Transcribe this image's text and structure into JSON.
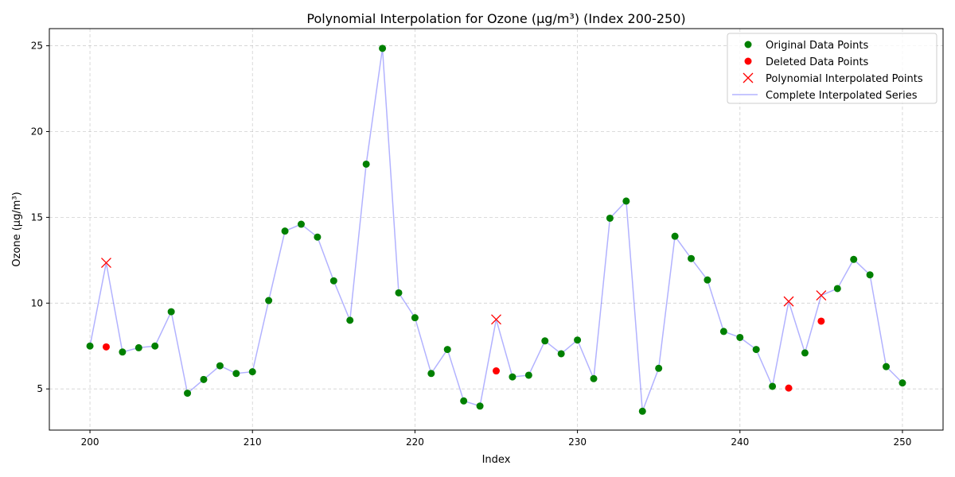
{
  "chart_data": {
    "type": "line",
    "title": "Polynomial Interpolation for Ozone (µg/m³) (Index 200-250)",
    "xlabel": "Index",
    "ylabel": "Ozone (µg/m³)",
    "xlim": [
      197.5,
      252.5
    ],
    "ylim": [
      2.6,
      26.0
    ],
    "xticks": [
      200,
      210,
      220,
      230,
      240,
      250
    ],
    "yticks": [
      5,
      10,
      15,
      20,
      25
    ],
    "grid": true,
    "legend_position": "top-right",
    "colors": {
      "original": "#008000",
      "deleted": "#ff0000",
      "interpolated_marker": "#ff0000",
      "series_line": "#0000ff"
    },
    "legend": [
      {
        "key": "original",
        "label": "Original Data Points"
      },
      {
        "key": "deleted",
        "label": "Deleted Data Points"
      },
      {
        "key": "interpolated",
        "label": "Polynomial Interpolated Points"
      },
      {
        "key": "complete",
        "label": "Complete Interpolated Series"
      }
    ],
    "series": [
      {
        "name": "Original Data Points",
        "x": [
          200,
          202,
          203,
          204,
          205,
          206,
          207,
          208,
          209,
          210,
          211,
          212,
          213,
          214,
          215,
          216,
          217,
          218,
          219,
          220,
          221,
          222,
          223,
          224,
          226,
          227,
          228,
          229,
          230,
          231,
          232,
          233,
          234,
          235,
          236,
          237,
          238,
          239,
          240,
          241,
          242,
          244,
          246,
          247,
          248,
          249,
          250
        ],
        "y": [
          7.5,
          7.15,
          7.4,
          7.5,
          9.5,
          4.75,
          5.55,
          6.35,
          5.9,
          6.0,
          10.15,
          14.2,
          14.6,
          13.85,
          11.3,
          9.0,
          18.1,
          24.85,
          10.6,
          9.15,
          5.9,
          7.3,
          4.3,
          4.0,
          5.7,
          5.8,
          7.8,
          7.05,
          7.85,
          5.6,
          14.95,
          15.95,
          3.7,
          6.2,
          13.9,
          12.6,
          11.35,
          8.35,
          8.0,
          7.3,
          5.15,
          7.1,
          10.85,
          12.55,
          11.65,
          6.3,
          5.35
        ]
      },
      {
        "name": "Deleted Data Points",
        "x": [
          201,
          225,
          243,
          245
        ],
        "y": [
          7.45,
          6.05,
          5.05,
          8.95
        ]
      },
      {
        "name": "Polynomial Interpolated Points",
        "x": [
          201,
          225,
          243,
          245
        ],
        "y": [
          12.35,
          9.05,
          10.1,
          10.45
        ]
      },
      {
        "name": "Complete Interpolated Series",
        "x": [
          200,
          201,
          202,
          203,
          204,
          205,
          206,
          207,
          208,
          209,
          210,
          211,
          212,
          213,
          214,
          215,
          216,
          217,
          218,
          219,
          220,
          221,
          222,
          223,
          224,
          225,
          226,
          227,
          228,
          229,
          230,
          231,
          232,
          233,
          234,
          235,
          236,
          237,
          238,
          239,
          240,
          241,
          242,
          243,
          244,
          245,
          246,
          247,
          248,
          249,
          250
        ],
        "y": [
          7.5,
          12.35,
          7.15,
          7.4,
          7.5,
          9.5,
          4.75,
          5.55,
          6.35,
          5.9,
          6.0,
          10.15,
          14.2,
          14.6,
          13.85,
          11.3,
          9.0,
          18.1,
          24.85,
          10.6,
          9.15,
          5.9,
          7.3,
          4.3,
          4.0,
          9.05,
          5.7,
          5.8,
          7.8,
          7.05,
          7.85,
          5.6,
          14.95,
          15.95,
          3.7,
          6.2,
          13.9,
          12.6,
          11.35,
          8.35,
          8.0,
          7.3,
          5.15,
          10.1,
          7.1,
          10.45,
          10.85,
          12.55,
          11.65,
          6.3,
          5.35
        ]
      }
    ]
  }
}
